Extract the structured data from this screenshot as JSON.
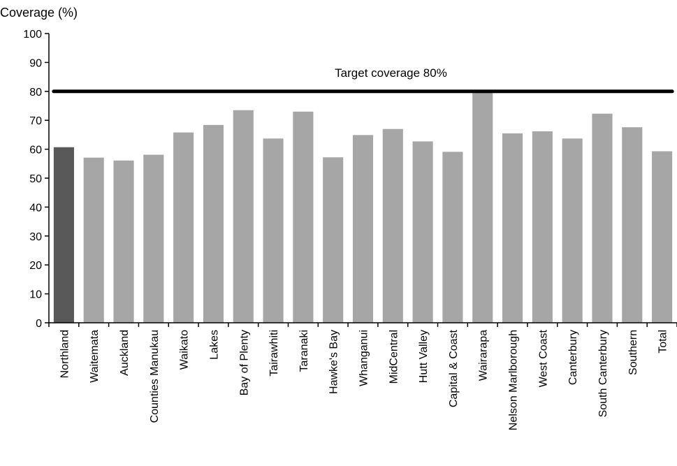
{
  "chart_data": {
    "type": "bar",
    "title": "",
    "ylabel": "Coverage (%)",
    "xlabel": "",
    "ylim": [
      0,
      100
    ],
    "yticks": [
      0,
      10,
      20,
      30,
      40,
      50,
      60,
      70,
      80,
      90,
      100
    ],
    "grid": false,
    "categories": [
      "Northland",
      "Waitemata",
      "Auckland",
      "Counties Manukau",
      "Waikato",
      "Lakes",
      "Bay of Plenty",
      "Tairawhiti",
      "Taranaki",
      "Hawke's Bay",
      "Whanganui",
      "MidCentral",
      "Hutt Valley",
      "Capital & Coast",
      "Wairarapa",
      "Nelson Marlborough",
      "West Coast",
      "Canterbury",
      "South Canterbury",
      "Southern",
      "Total"
    ],
    "values": [
      60.7,
      57.1,
      56.1,
      58.1,
      65.8,
      68.4,
      73.5,
      63.7,
      73.0,
      57.2,
      64.9,
      67.0,
      62.7,
      59.1,
      80.3,
      65.5,
      66.2,
      63.7,
      72.3,
      67.6,
      59.3
    ],
    "highlight_category": "Northland",
    "colors": {
      "highlight": "#595959",
      "bar": "#a6a6a6",
      "target": "#000000",
      "axis": "#000000"
    },
    "target": {
      "value": 80,
      "label": "Target coverage 80%"
    }
  }
}
